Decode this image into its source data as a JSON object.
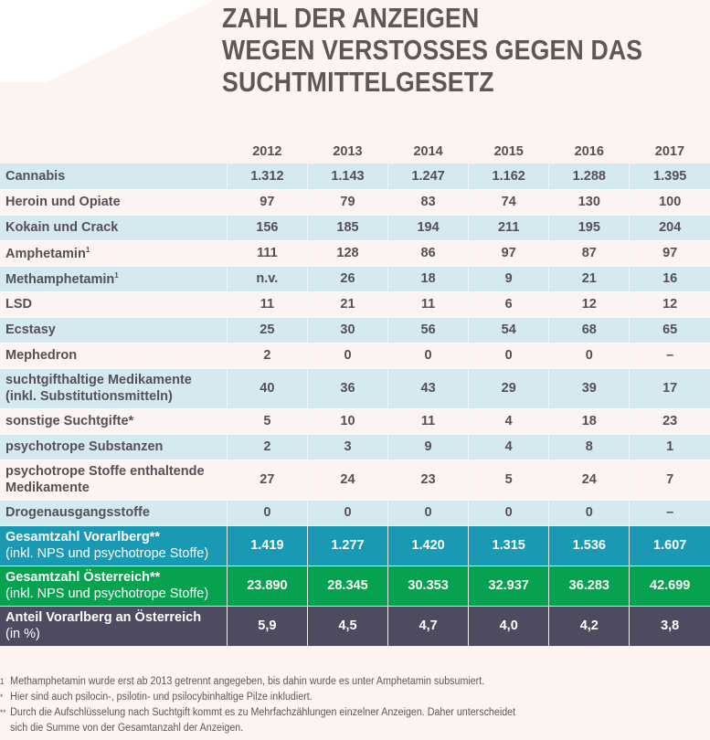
{
  "title_lines": [
    "ZAHL DER ANZEIGEN",
    "WEGEN VERSTOSSES GEGEN DAS",
    "SUCHTMITTELGESETZ"
  ],
  "table": {
    "years": [
      "2012",
      "2013",
      "2014",
      "2015",
      "2016",
      "2017"
    ],
    "rows": [
      {
        "label": "Cannabis",
        "mark": "",
        "values": [
          "1.312",
          "1.143",
          "1.247",
          "1.162",
          "1.288",
          "1.395"
        ]
      },
      {
        "label": "Heroin und Opiate",
        "mark": "",
        "values": [
          "97",
          "79",
          "83",
          "74",
          "130",
          "100"
        ]
      },
      {
        "label": "Kokain und Crack",
        "mark": "",
        "values": [
          "156",
          "185",
          "194",
          "211",
          "195",
          "204"
        ]
      },
      {
        "label": "Amphetamin",
        "mark": "1",
        "values": [
          "111",
          "128",
          "86",
          "97",
          "87",
          "97"
        ]
      },
      {
        "label": "Methamphetamin",
        "mark": "1",
        "values": [
          "n.v.",
          "26",
          "18",
          "9",
          "21",
          "16"
        ]
      },
      {
        "label": "LSD",
        "mark": "",
        "values": [
          "11",
          "21",
          "11",
          "6",
          "12",
          "12"
        ]
      },
      {
        "label": "Ecstasy",
        "mark": "",
        "values": [
          "25",
          "30",
          "56",
          "54",
          "68",
          "65"
        ]
      },
      {
        "label": "Mephedron",
        "mark": "",
        "values": [
          "2",
          "0",
          "0",
          "0",
          "0",
          "–"
        ]
      },
      {
        "label": "suchtgifthaltige Medikamente",
        "label2": "(inkl. Substitutionsmitteln)",
        "values": [
          "40",
          "36",
          "43",
          "29",
          "39",
          "17"
        ]
      },
      {
        "label": "sonstige Suchtgifte*",
        "mark": "",
        "values": [
          "5",
          "10",
          "11",
          "4",
          "18",
          "23"
        ]
      },
      {
        "label": "psychotrope Substanzen",
        "mark": "",
        "values": [
          "2",
          "3",
          "9",
          "4",
          "8",
          "1"
        ]
      },
      {
        "label": "psychotrope Stoffe enthaltende",
        "label2": "Medikamente",
        "values": [
          "27",
          "24",
          "23",
          "5",
          "24",
          "7"
        ]
      },
      {
        "label": "Drogenausgangsstoffe",
        "mark": "",
        "values": [
          "0",
          "0",
          "0",
          "0",
          "0",
          "–"
        ]
      }
    ],
    "totals": [
      {
        "label": "Gesamtzahl Vorarlberg**",
        "label2": "(inkl. NPS und psychotrope Stoffe)",
        "color": "#1999b4",
        "values": [
          "1.419",
          "1.277",
          "1.420",
          "1.315",
          "1.536",
          "1.607"
        ]
      },
      {
        "label": "Gesamtzahl Österreich**",
        "label2": "(inkl. NPS und psychotrope Stoffe)",
        "color": "#06a24f",
        "values": [
          "23.890",
          "28.345",
          "30.353",
          "32.937",
          "36.283",
          "42.699"
        ]
      },
      {
        "label": "Anteil Vorarlberg an Österreich",
        "label2": "(in %)",
        "color": "#4e4b60",
        "values": [
          "5,9",
          "4,5",
          "4,7",
          "4,0",
          "4,2",
          "3,8"
        ]
      }
    ]
  },
  "footnotes": [
    {
      "mark": "1",
      "text": "Methamphetamin wurde erst ab 2013 getrennt angegeben, bis dahin wurde es unter Amphetamin subsumiert."
    },
    {
      "mark": "*",
      "text": "Hier sind auch psilocin-, psilotin- und psilocybinhaltige Pilze inkludiert."
    },
    {
      "mark": "**",
      "text": "Durch die Aufschlüsselung nach Suchtgift kommt es zu Mehrfachzählungen einzelner Anzeigen. Daher unterscheidet"
    },
    {
      "mark": "",
      "text": "sich die Summe von der Gesamtanzahl der Anzeigen."
    }
  ]
}
